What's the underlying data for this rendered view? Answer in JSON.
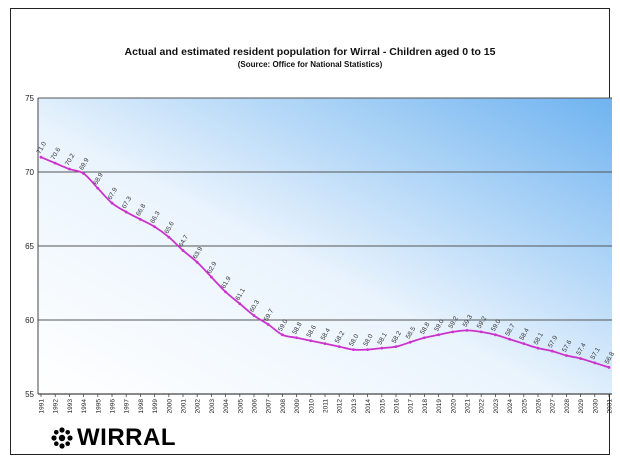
{
  "chart_data": {
    "type": "line",
    "title": "Actual and estimated resident population for Wirral - Children aged 0 to 15",
    "subtitle": "(Source: Office for National Statistics)",
    "xlabel": "",
    "ylabel": "",
    "ylim": [
      55,
      75
    ],
    "yticks": [
      55,
      60,
      65,
      70,
      75
    ],
    "grid": true,
    "legend": "none",
    "line_color": "#cc33cc",
    "background_gradient": [
      "#ffffff",
      "#6fb3f0"
    ],
    "series": [
      {
        "x": [
          "1991",
          "1992",
          "1993",
          "1994",
          "1995",
          "1996",
          "1997",
          "1998",
          "1999",
          "2000",
          "2001",
          "2002",
          "2003",
          "2004",
          "2005",
          "2006",
          "2007",
          "2008",
          "2009",
          "2010",
          "2011",
          "2012",
          "2013",
          "2014",
          "2015",
          "2016",
          "2017",
          "2018",
          "2019",
          "2020",
          "2021",
          "2022",
          "2023",
          "2024",
          "2025",
          "2026",
          "2027",
          "2028",
          "2029",
          "2030",
          "2031"
        ],
        "values": [
          71.0,
          70.6,
          70.2,
          69.9,
          68.9,
          67.9,
          67.3,
          66.8,
          66.3,
          65.6,
          64.7,
          63.9,
          62.9,
          61.9,
          61.1,
          60.3,
          59.7,
          59.0,
          58.8,
          58.6,
          58.4,
          58.2,
          58.0,
          58.0,
          58.1,
          58.2,
          58.5,
          58.8,
          59.0,
          59.2,
          59.3,
          59.2,
          59.0,
          58.7,
          58.4,
          58.1,
          57.9,
          57.6,
          57.4,
          57.1,
          56.8
        ],
        "labels": [
          "71.0",
          "70.6",
          "70.2",
          "69.9",
          "68.9",
          "67.9",
          "67.3",
          "66.8",
          "66.3",
          "65.6",
          "64.7",
          "63.9",
          "62.9",
          "61.9",
          "61.1",
          "60.3",
          "59.7",
          "59.0",
          "58.8",
          "58.6",
          "58.4",
          "58.2",
          "58.0",
          "58.0",
          "58.1",
          "58.2",
          "58.5",
          "58.8",
          "59.0",
          "59.2",
          "59.3",
          "59.2",
          "59.0",
          "58.7",
          "58.4",
          "58.1",
          "57.9",
          "57.6",
          "57.4",
          "57.1",
          "56.8"
        ]
      }
    ]
  },
  "logo": {
    "text": "WIRRAL",
    "icon": "flower-icon"
  }
}
